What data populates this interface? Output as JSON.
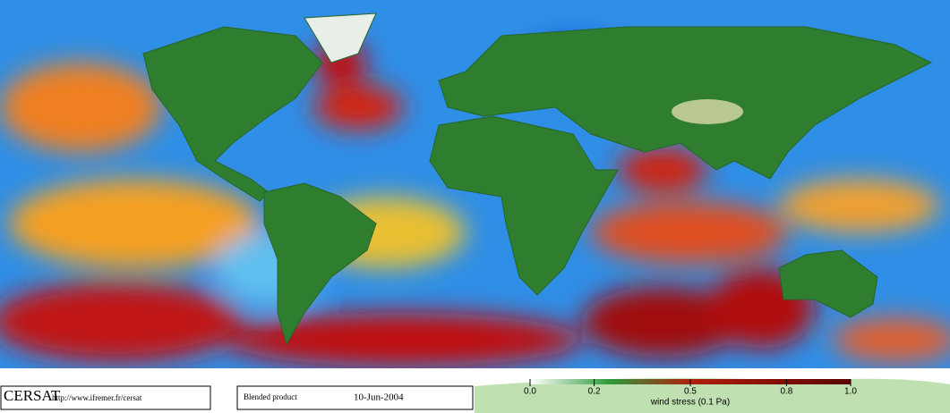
{
  "footer": {
    "logo": "CERSAT",
    "url": "http://www.ifremer.fr/cersat",
    "product": "Blended product",
    "date": "10-Jun-2004"
  },
  "colorbar": {
    "title": "wind stress (0.1 Pa)",
    "ticks": [
      {
        "value": 0,
        "label": "0.0"
      },
      {
        "value": 0.2,
        "label": "0.2"
      },
      {
        "value": 0.5,
        "label": "0.5"
      },
      {
        "value": 0.8,
        "label": "0.8"
      },
      {
        "value": 1,
        "label": "1.0"
      }
    ]
  }
}
